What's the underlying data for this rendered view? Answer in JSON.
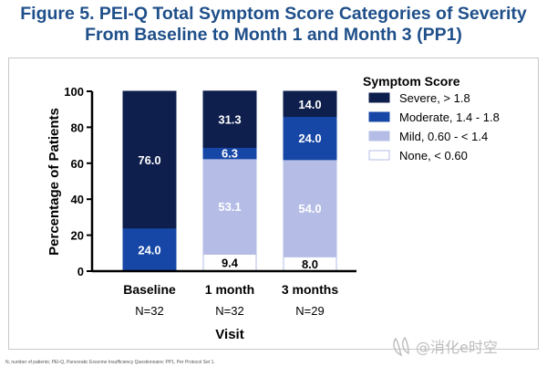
{
  "title": {
    "line1": "Figure 5. PEI-Q Total Symptom Score Categories of Severity",
    "line2": "From Baseline to Month 1 and Month 3 (PP1)"
  },
  "footnote": "N, number of patients; PEI-Q, Pancreatic Exocrine Insufficiency Questionnaire; PP1, Per Protocol Set 1.",
  "watermark": "@消化e时空",
  "colors": {
    "title": "#1f4f8a",
    "severe": "#0e1f4d",
    "moderate": "#1747a6",
    "mild": "#b5bde6",
    "none": "#ffffff"
  },
  "chart_data": {
    "type": "bar",
    "stacked": true,
    "categories": [
      "Baseline",
      "1 month",
      "3 months"
    ],
    "category_n": [
      "N=32",
      "N=32",
      "N=29"
    ],
    "xlabel": "Visit",
    "ylabel": "Percentage of Patients",
    "ylim": [
      0,
      100
    ],
    "yticks": [
      0,
      20,
      40,
      60,
      80,
      100
    ],
    "legend_title": "Symptom Score",
    "legend_position": "top-right",
    "grid": false,
    "series": [
      {
        "name": "None, < 0.60",
        "color": "#ffffff",
        "values": [
          0,
          9.4,
          8.0
        ],
        "labels": [
          "",
          "9.4",
          "8.0"
        ]
      },
      {
        "name": "Mild, 0.60 - < 1.4",
        "color": "#b5bde6",
        "values": [
          0,
          53.1,
          54.0
        ],
        "labels": [
          "",
          "53.1",
          "54.0"
        ]
      },
      {
        "name": "Moderate, 1.4 - 1.8",
        "color": "#1747a6",
        "values": [
          24.0,
          6.3,
          24.0
        ],
        "labels": [
          "24.0",
          "6.3",
          "24.0"
        ]
      },
      {
        "name": "Severe, > 1.8",
        "color": "#0e1f4d",
        "values": [
          76.0,
          31.3,
          14.0
        ],
        "labels": [
          "76.0",
          "31.3",
          "14.0"
        ]
      }
    ],
    "legend_order": [
      3,
      2,
      1,
      0
    ]
  }
}
